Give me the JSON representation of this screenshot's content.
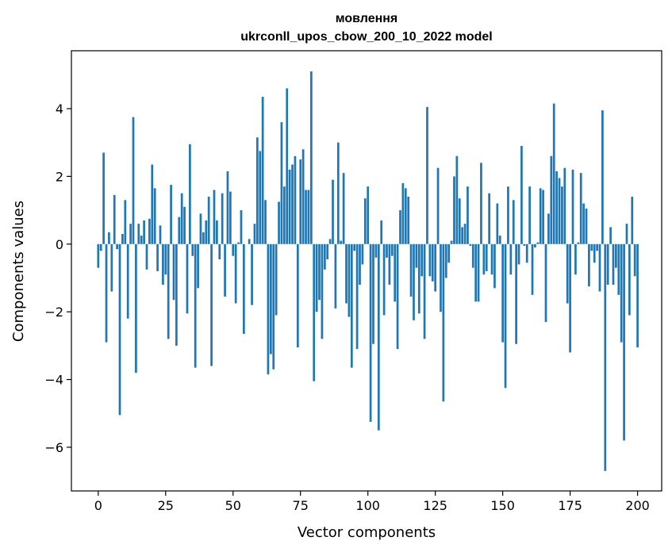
{
  "chart_data": {
    "type": "bar",
    "title_line1": "мовлення",
    "title_line2": "ukrconll_upos_cbow_200_10_2022 model",
    "xlabel": "Vector components",
    "ylabel": "Components values",
    "xlim": [
      -9.95,
      208.95
    ],
    "ylim": [
      -7.29,
      5.71
    ],
    "xticks": [
      0,
      25,
      50,
      75,
      100,
      125,
      150,
      175,
      200
    ],
    "xtick_labels": [
      "0",
      "25",
      "50",
      "75",
      "100",
      "125",
      "150",
      "175",
      "200"
    ],
    "yticks": [
      -6,
      -4,
      -2,
      0,
      2,
      4
    ],
    "ytick_labels": [
      "−6",
      "−4",
      "−2",
      "0",
      "2",
      "4"
    ],
    "bar_color": "#1f77b4",
    "values": [
      -0.7,
      -0.2,
      2.7,
      -2.9,
      0.35,
      -1.4,
      1.45,
      -0.15,
      -5.05,
      0.3,
      1.3,
      -2.2,
      0.6,
      3.75,
      -3.8,
      0.6,
      0.25,
      0.7,
      -0.75,
      0.75,
      2.35,
      1.65,
      -0.8,
      0.55,
      -1.2,
      -0.9,
      -2.8,
      1.75,
      -1.65,
      -3.0,
      0.8,
      1.5,
      1.1,
      -2.05,
      2.95,
      -0.35,
      -3.65,
      -1.3,
      0.9,
      0.35,
      0.7,
      1.4,
      -3.6,
      1.6,
      0.7,
      -0.45,
      1.5,
      -1.55,
      2.15,
      1.55,
      -0.35,
      -1.75,
      0.05,
      1.0,
      -2.65,
      0.0,
      0.15,
      -1.8,
      0.6,
      3.15,
      2.75,
      4.35,
      1.3,
      -3.85,
      -3.25,
      -3.7,
      -2.1,
      1.25,
      3.6,
      1.7,
      4.6,
      2.2,
      2.35,
      2.6,
      -3.05,
      2.5,
      2.8,
      1.6,
      1.6,
      5.1,
      -4.05,
      -2.0,
      -1.65,
      -2.8,
      -0.75,
      -0.45,
      0.15,
      1.9,
      -1.9,
      3.0,
      0.1,
      2.1,
      -1.75,
      -2.15,
      -3.65,
      -0.2,
      -3.1,
      -1.2,
      -0.6,
      1.35,
      1.7,
      -5.25,
      -2.95,
      -0.4,
      -5.5,
      0.7,
      -2.1,
      -0.4,
      -1.2,
      -0.35,
      -1.7,
      -3.1,
      1.0,
      1.8,
      1.65,
      1.4,
      -1.55,
      -2.25,
      -0.7,
      -2.05,
      -0.95,
      -2.8,
      4.05,
      -0.95,
      -1.1,
      -1.4,
      2.25,
      -2.0,
      -4.65,
      -1.0,
      -0.55,
      0.1,
      2.0,
      2.6,
      1.35,
      0.5,
      0.6,
      1.7,
      -0.05,
      -0.7,
      -1.7,
      -1.7,
      2.4,
      -0.9,
      -0.8,
      1.5,
      -0.9,
      -1.3,
      1.2,
      0.25,
      -2.9,
      -4.25,
      1.7,
      -0.9,
      1.3,
      -2.95,
      -0.6,
      2.9,
      -0.05,
      -0.55,
      1.7,
      -1.5,
      -0.1,
      0.05,
      1.65,
      1.6,
      -2.3,
      0.9,
      2.6,
      4.15,
      2.15,
      1.95,
      1.7,
      2.25,
      -1.75,
      -3.2,
      2.2,
      -0.9,
      0.05,
      2.1,
      1.2,
      1.05,
      -1.25,
      -0.2,
      -0.55,
      -0.2,
      -1.4,
      3.95,
      -6.7,
      -1.2,
      0.5,
      -1.2,
      -0.7,
      -1.5,
      -2.9,
      -5.8,
      0.6,
      -2.1,
      1.4,
      -0.95,
      -3.05
    ]
  }
}
